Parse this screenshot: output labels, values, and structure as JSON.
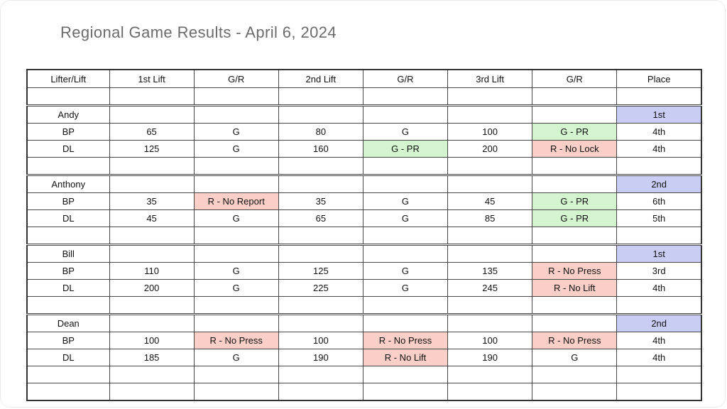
{
  "page": {
    "title": "Regional Game Results - April 6, 2024"
  },
  "colors": {
    "page_bg": "#ffffff",
    "title_color": "#6b6b6b",
    "text_color": "#111111",
    "frame": "#333333",
    "grid": "#474747",
    "blue": "#c9cdf3",
    "green": "#d4f4d0",
    "red": "#f9cfc8"
  },
  "table": {
    "columns": [
      "Lifter/Lift",
      "1st Lift",
      "G/R",
      "2nd Lift",
      "G/R",
      "3rd Lift",
      "G/R",
      "Place"
    ],
    "rows": [
      {
        "type": "spacer",
        "cells": [
          "",
          "",
          "",
          "",
          "",
          "",
          "",
          ""
        ]
      },
      {
        "type": "name",
        "cells": [
          "Andy",
          "",
          "",
          "",
          "",
          "",
          "",
          "1st"
        ],
        "highlights": {
          "7": "blue"
        }
      },
      {
        "type": "data",
        "cells": [
          "BP",
          "65",
          "G",
          "80",
          "G",
          "100",
          "G - PR",
          "4th"
        ],
        "highlights": {
          "6": "green"
        }
      },
      {
        "type": "data",
        "cells": [
          "DL",
          "125",
          "G",
          "160",
          "G - PR",
          "200",
          "R - No Lock",
          "4th"
        ],
        "highlights": {
          "4": "green",
          "6": "red"
        }
      },
      {
        "type": "spacer",
        "cells": [
          "",
          "",
          "",
          "",
          "",
          "",
          "",
          ""
        ]
      },
      {
        "type": "name",
        "cells": [
          "Anthony",
          "",
          "",
          "",
          "",
          "",
          "",
          "2nd"
        ],
        "highlights": {
          "7": "blue"
        }
      },
      {
        "type": "data",
        "cells": [
          "BP",
          "35",
          "R - No Report",
          "35",
          "G",
          "45",
          "G - PR",
          "6th"
        ],
        "highlights": {
          "2": "red",
          "6": "green"
        }
      },
      {
        "type": "data",
        "cells": [
          "DL",
          "45",
          "G",
          "65",
          "G",
          "85",
          "G - PR",
          "5th"
        ],
        "highlights": {
          "6": "green"
        }
      },
      {
        "type": "spacer",
        "cells": [
          "",
          "",
          "",
          "",
          "",
          "",
          "",
          ""
        ]
      },
      {
        "type": "name",
        "cells": [
          "Bill",
          "",
          "",
          "",
          "",
          "",
          "",
          "1st"
        ],
        "highlights": {
          "7": "blue"
        }
      },
      {
        "type": "data",
        "cells": [
          "BP",
          "110",
          "G",
          "125",
          "G",
          "135",
          "R - No Press",
          "3rd"
        ],
        "highlights": {
          "6": "red"
        }
      },
      {
        "type": "data",
        "cells": [
          "DL",
          "200",
          "G",
          "225",
          "G",
          "245",
          "R - No Lift",
          "4th"
        ],
        "highlights": {
          "6": "red"
        }
      },
      {
        "type": "spacer",
        "cells": [
          "",
          "",
          "",
          "",
          "",
          "",
          "",
          ""
        ]
      },
      {
        "type": "name",
        "cells": [
          "Dean",
          "",
          "",
          "",
          "",
          "",
          "",
          "2nd"
        ],
        "highlights": {
          "7": "blue"
        }
      },
      {
        "type": "data",
        "cells": [
          "BP",
          "100",
          "R - No Press",
          "100",
          "R - No Press",
          "100",
          "R - No Press",
          "4th"
        ],
        "highlights": {
          "2": "red",
          "4": "red",
          "6": "red"
        }
      },
      {
        "type": "data",
        "cells": [
          "DL",
          "185",
          "G",
          "190",
          "R - No Lift",
          "190",
          "G",
          "4th"
        ],
        "highlights": {
          "4": "red"
        }
      },
      {
        "type": "spacer",
        "cells": [
          "",
          "",
          "",
          "",
          "",
          "",
          "",
          ""
        ]
      },
      {
        "type": "spacer",
        "cells": [
          "",
          "",
          "",
          "",
          "",
          "",
          "",
          ""
        ]
      }
    ]
  }
}
